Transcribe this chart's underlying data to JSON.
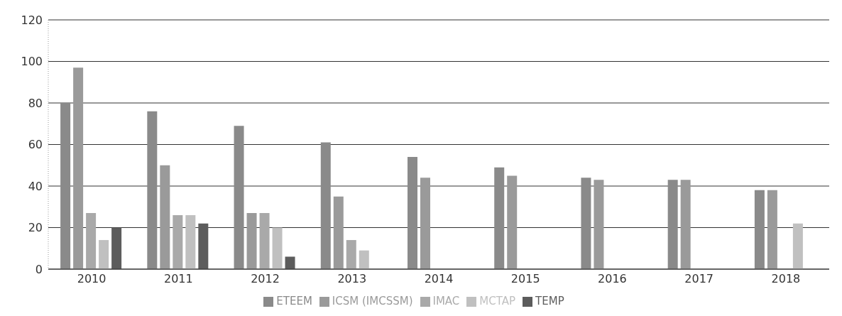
{
  "chart_data": {
    "type": "bar",
    "categories": [
      "2010",
      "2011",
      "2012",
      "2013",
      "2014",
      "2015",
      "2016",
      "2017",
      "2018"
    ],
    "series": [
      {
        "name": "ETEEM",
        "color": "#8a8a8a",
        "values": [
          80,
          76,
          69,
          61,
          54,
          49,
          44,
          43,
          38
        ]
      },
      {
        "name": "ICSM  (IMCSSM)",
        "color": "#9a9a9a",
        "values": [
          97,
          50,
          27,
          35,
          44,
          45,
          43,
          43,
          38
        ]
      },
      {
        "name": "IMAC",
        "color": "#a9a9a9",
        "values": [
          27,
          26,
          27,
          14,
          null,
          null,
          null,
          null,
          null
        ]
      },
      {
        "name": "MCTAP",
        "color": "#c0c0c0",
        "values": [
          14,
          26,
          20,
          9,
          null,
          null,
          null,
          null,
          22
        ]
      },
      {
        "name": "TEMP",
        "color": "#5c5c5c",
        "values": [
          20,
          22,
          6,
          null,
          null,
          null,
          null,
          null,
          null
        ]
      }
    ],
    "ylim": [
      0,
      120
    ],
    "yticks": [
      0,
      20,
      40,
      60,
      80,
      100,
      120
    ],
    "grid": "y",
    "legend": "bottom"
  }
}
